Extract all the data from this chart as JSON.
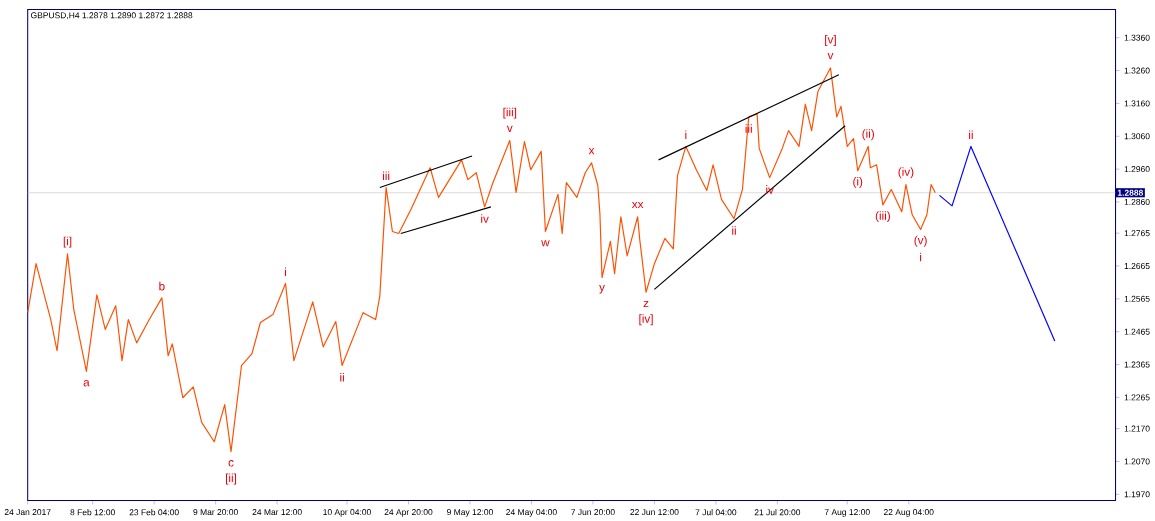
{
  "chart_data": {
    "type": "line",
    "title": "GBPUSD,H4  1.2878 1.2890 1.2872 1.2888",
    "xlim": [
      "2017-01-24",
      "2017-10-10T12:00"
    ],
    "ylim": [
      1.1951,
      1.3446
    ],
    "xticks": [
      {
        "value": "2017-01-24",
        "label": "24 Jan 2017"
      },
      {
        "value": "2017-02-08T12:00",
        "label": "8 Feb 12:00"
      },
      {
        "value": "2017-02-23T04:00",
        "label": "23 Feb 04:00"
      },
      {
        "value": "2017-03-09T20:00",
        "label": "9 Mar 20:00"
      },
      {
        "value": "2017-03-24T12:00",
        "label": "24 Mar 12:00"
      },
      {
        "value": "2017-04-10T04:00",
        "label": "10 Apr 04:00"
      },
      {
        "value": "2017-04-24T20:00",
        "label": "24 Apr 20:00"
      },
      {
        "value": "2017-05-09T12:00",
        "label": "9 May 12:00"
      },
      {
        "value": "2017-05-24T04:00",
        "label": "24 May 04:00"
      },
      {
        "value": "2017-06-07T20:00",
        "label": "7 Jun 20:00"
      },
      {
        "value": "2017-06-22T12:00",
        "label": "22 Jun 12:00"
      },
      {
        "value": "2017-07-07T04:00",
        "label": "7 Jul 04:00"
      },
      {
        "value": "2017-07-21T20:00",
        "label": "21 Jul 20:00"
      },
      {
        "value": "2017-08-07T12:00",
        "label": "7 Aug 12:00"
      },
      {
        "value": "2017-08-22T04:00",
        "label": "22 Aug 04:00"
      }
    ],
    "yticks": [
      {
        "value": 1.197,
        "label": "1.1970"
      },
      {
        "value": 1.207,
        "label": "1.2070"
      },
      {
        "value": 1.217,
        "label": "1.2170"
      },
      {
        "value": 1.2265,
        "label": "1.2265"
      },
      {
        "value": 1.2365,
        "label": "1.2365"
      },
      {
        "value": 1.2465,
        "label": "1.2465"
      },
      {
        "value": 1.2565,
        "label": "1.2565"
      },
      {
        "value": 1.2665,
        "label": "1.2665"
      },
      {
        "value": 1.2765,
        "label": "1.2765"
      },
      {
        "value": 1.286,
        "label": "1.2860"
      },
      {
        "value": 1.296,
        "label": "1.2960"
      },
      {
        "value": 1.306,
        "label": "1.3060"
      },
      {
        "value": 1.316,
        "label": "1.3160"
      },
      {
        "value": 1.326,
        "label": "1.3260"
      },
      {
        "value": 1.336,
        "label": "1.3360"
      }
    ],
    "series": [
      {
        "color": "#ff5000",
        "x": [
          "2017-01-24",
          "2017-01-26",
          "2017-01-29T12:00",
          "2017-01-31",
          "2017-02-02T12:00",
          "2017-02-04",
          "2017-02-07",
          "2017-02-09T12:00",
          "2017-02-11T12:00",
          "2017-02-14",
          "2017-02-15T12:00",
          "2017-02-17",
          "2017-02-19",
          "2017-02-22",
          "2017-02-25",
          "2017-02-26T12:00",
          "2017-02-27T12:00",
          "2017-03-02",
          "2017-03-04T12:00",
          "2017-03-06T12:00",
          "2017-03-09T12:00",
          "2017-03-12",
          "2017-03-13T12:00",
          "2017-03-16",
          "2017-03-18T12:00",
          "2017-03-20T12:00",
          "2017-03-23T12:00",
          "2017-03-26T12:00",
          "2017-03-28T12:00",
          "2017-04-02",
          "2017-04-04T12:00",
          "2017-04-07T12:00",
          "2017-04-09",
          "2017-04-14",
          "2017-04-17",
          "2017-04-18",
          "2017-04-19T12:00",
          "2017-04-21",
          "2017-04-22T12:00",
          "2017-04-25T12:00",
          "2017-04-30",
          "2017-05-02",
          "2017-05-07T12:00",
          "2017-05-09",
          "2017-05-11",
          "2017-05-13",
          "2017-05-15",
          "2017-05-19",
          "2017-05-20T12:00",
          "2017-05-22T12:00",
          "2017-05-24",
          "2017-05-26T12:00",
          "2017-05-27T12:00",
          "2017-05-30T12:00",
          "2017-05-31T12:00",
          "2017-06-01T12:00",
          "2017-06-04",
          "2017-06-06",
          "2017-06-07T12:00",
          "2017-06-09",
          "2017-06-09T12:00",
          "2017-06-10",
          "2017-06-12",
          "2017-06-13",
          "2017-06-14T12:00",
          "2017-06-16",
          "2017-06-18T12:00",
          "2017-06-19",
          "2017-06-20T12:00",
          "2017-06-22T12:00",
          "2017-06-25",
          "2017-06-27",
          "2017-06-28",
          "2017-06-30",
          "2017-07-02T12:00",
          "2017-07-05",
          "2017-07-06T12:00",
          "2017-07-08T12:00",
          "2017-07-11T12:00",
          "2017-07-13T12:00",
          "2017-07-15",
          "2017-07-17",
          "2017-07-17T12:00",
          "2017-07-20",
          "2017-07-23",
          "2017-07-24T12:00",
          "2017-07-27",
          "2017-07-28T12:00",
          "2017-07-30",
          "2017-07-31T12:00",
          "2017-08-03T12:00",
          "2017-08-05",
          "2017-08-06",
          "2017-08-07T12:00",
          "2017-08-09",
          "2017-08-10",
          "2017-08-12T12:00",
          "2017-08-13",
          "2017-08-14T12:00",
          "2017-08-16",
          "2017-08-18",
          "2017-08-20T12:00",
          "2017-08-21T12:00",
          "2017-08-23",
          "2017-08-25",
          "2017-08-26T12:00",
          "2017-08-27T12:00",
          "2017-08-28T12:00"
        ],
        "values": [
          1.2523,
          1.2672,
          1.2502,
          1.2407,
          1.2702,
          1.2532,
          1.2344,
          1.2577,
          1.2472,
          1.2544,
          1.2377,
          1.2502,
          1.2431,
          1.2502,
          1.2568,
          1.2392,
          1.2428,
          1.2264,
          1.2297,
          1.2189,
          1.213,
          1.2243,
          1.21,
          1.2362,
          1.2398,
          1.2493,
          1.2517,
          1.2612,
          1.2377,
          1.2556,
          1.2419,
          1.2496,
          1.2362,
          1.2523,
          1.2502,
          1.2574,
          1.2904,
          1.277,
          1.2764,
          1.2839,
          1.2964,
          1.2874,
          1.2988,
          1.2928,
          1.2949,
          1.2845,
          1.2919,
          1.3047,
          1.2889,
          1.3044,
          1.2958,
          1.3014,
          1.277,
          1.2883,
          1.2764,
          1.2919,
          1.2874,
          1.2949,
          1.2979,
          1.291,
          1.2824,
          1.263,
          1.274,
          1.2642,
          1.2815,
          1.2696,
          1.2815,
          1.2746,
          1.2585,
          1.2672,
          1.2749,
          1.2717,
          1.294,
          1.3029,
          1.2958,
          1.2895,
          1.2973,
          1.2868,
          1.2809,
          1.2898,
          1.3119,
          1.3128,
          1.3023,
          1.2934,
          1.3023,
          1.3077,
          1.3029,
          1.3157,
          1.3077,
          1.3196,
          1.3268,
          1.3119,
          1.3151,
          1.3029,
          1.3053,
          1.2955,
          1.3029,
          1.2964,
          1.2973,
          1.2851,
          1.2898,
          1.283,
          1.2913,
          1.2821,
          1.2776,
          1.2821,
          1.2913,
          1.2888
        ]
      },
      {
        "color": "#0000ff",
        "x": [
          "2017-08-29T12:00",
          "2017-09-01T12:00",
          "2017-09-06",
          "2017-09-26"
        ],
        "values": [
          1.288,
          1.2848,
          1.3029,
          1.2437
        ]
      },
      {
        "color": "#000000",
        "x": [
          "2017-04-18",
          "2017-05-10"
        ],
        "values": [
          1.2904,
          1.3
        ]
      },
      {
        "color": "#000000",
        "x": [
          "2017-04-23",
          "2017-05-14T12:00"
        ],
        "values": [
          1.2764,
          1.2845
        ]
      },
      {
        "color": "#000000",
        "x": [
          "2017-06-23T12:00",
          "2017-08-05T12:00"
        ],
        "values": [
          1.2988,
          1.3247
        ]
      },
      {
        "color": "#000000",
        "x": [
          "2017-06-22T12:00",
          "2017-08-07"
        ],
        "values": [
          1.2594,
          1.3092
        ]
      }
    ],
    "line_style": "solid",
    "ref_lines": [
      {
        "axis": "y",
        "value": 1.2888,
        "label": "1.2888",
        "color": "#c8c8c8"
      }
    ],
    "annotations": [
      {
        "text": "[i]",
        "x": "2017-02-02T12:00",
        "y": 1.2702
      },
      {
        "text": "a",
        "x": "2017-02-07",
        "y": 1.2344
      },
      {
        "text": "b",
        "x": "2017-02-25",
        "y": 1.2568
      },
      {
        "text": "c",
        "x": "2017-03-13T12:00",
        "y": 1.21
      },
      {
        "text": "[ii]",
        "x": "2017-03-13T12:00",
        "y": 1.21
      },
      {
        "text": "i",
        "x": "2017-03-26T12:00",
        "y": 1.2612
      },
      {
        "text": "ii",
        "x": "2017-04-09",
        "y": 1.2362
      },
      {
        "text": "iii",
        "x": "2017-04-19T12:00",
        "y": 1.2904
      },
      {
        "text": "v",
        "x": "2017-05-19",
        "y": 1.3047
      },
      {
        "text": "[iii]",
        "x": "2017-05-19",
        "y": 1.3047
      },
      {
        "text": "iv",
        "x": "2017-05-13",
        "y": 1.2845
      },
      {
        "text": "w",
        "x": "2017-05-27T12:00",
        "y": 1.277
      },
      {
        "text": "x",
        "x": "2017-06-07T12:00",
        "y": 1.2979
      },
      {
        "text": "y",
        "x": "2017-06-10",
        "y": 1.263
      },
      {
        "text": "xx",
        "x": "2017-06-18T12:00",
        "y": 1.2815
      },
      {
        "text": "z",
        "x": "2017-06-20T12:00",
        "y": 1.2585
      },
      {
        "text": "[iv]",
        "x": "2017-06-20T12:00",
        "y": 1.2585
      },
      {
        "text": "i",
        "x": "2017-06-30",
        "y": 1.3029
      },
      {
        "text": "ii",
        "x": "2017-07-11T12:00",
        "y": 1.2809
      },
      {
        "text": "iii",
        "x": "2017-07-15",
        "y": 1.3119
      },
      {
        "text": "iv",
        "x": "2017-07-20",
        "y": 1.2934
      },
      {
        "text": "v",
        "x": "2017-08-03T12:00",
        "y": 1.3268
      },
      {
        "text": "[v]",
        "x": "2017-08-03T12:00",
        "y": 1.3268
      },
      {
        "text": "(i)",
        "x": "2017-08-10",
        "y": 1.2955
      },
      {
        "text": "(ii)",
        "x": "2017-08-12T12:00",
        "y": 1.3029
      },
      {
        "text": "(iii)",
        "x": "2017-08-16",
        "y": 1.2851
      },
      {
        "text": "(iv)",
        "x": "2017-08-21T12:00",
        "y": 1.2913
      },
      {
        "text": "(v)",
        "x": "2017-08-25",
        "y": 1.2776
      },
      {
        "text": "i",
        "x": "2017-08-25",
        "y": 1.2776
      },
      {
        "text": "ii",
        "x": "2017-09-06",
        "y": 1.3029
      }
    ]
  }
}
